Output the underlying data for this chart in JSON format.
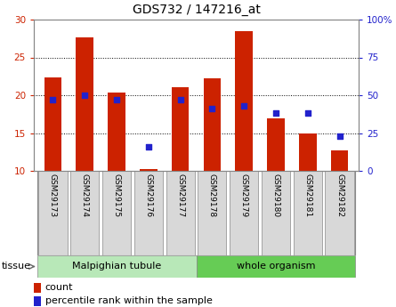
{
  "title": "GDS732 / 147216_at",
  "samples": [
    "GSM29173",
    "GSM29174",
    "GSM29175",
    "GSM29176",
    "GSM29177",
    "GSM29178",
    "GSM29179",
    "GSM29180",
    "GSM29181",
    "GSM29182"
  ],
  "counts": [
    22.3,
    27.7,
    20.4,
    10.2,
    21.1,
    22.2,
    28.5,
    17.0,
    15.0,
    12.7
  ],
  "percentiles": [
    47,
    50,
    47,
    16,
    47,
    41,
    43,
    38,
    38,
    23
  ],
  "ylim_left": [
    10,
    30
  ],
  "ylim_right": [
    0,
    100
  ],
  "yticks_left": [
    10,
    15,
    20,
    25,
    30
  ],
  "yticks_right": [
    0,
    25,
    50,
    75,
    100
  ],
  "ytick_labels_right": [
    "0",
    "25",
    "50",
    "75",
    "100%"
  ],
  "bar_color": "#cc2200",
  "dot_color": "#2222cc",
  "tissue_groups": [
    {
      "label": "Malpighian tubule",
      "start": 0,
      "end": 5
    },
    {
      "label": "whole organism",
      "start": 5,
      "end": 10
    }
  ],
  "tissue_color_1": "#b8e8b8",
  "tissue_color_2": "#66cc55",
  "tissue_label": "tissue",
  "legend_count_label": "count",
  "legend_percentile_label": "percentile rank within the sample",
  "bar_width": 0.55,
  "bg_color": "#ffffff",
  "label_color_left": "#cc2200",
  "label_color_right": "#2222cc",
  "sample_box_color": "#d8d8d8",
  "sample_box_edge": "#888888"
}
